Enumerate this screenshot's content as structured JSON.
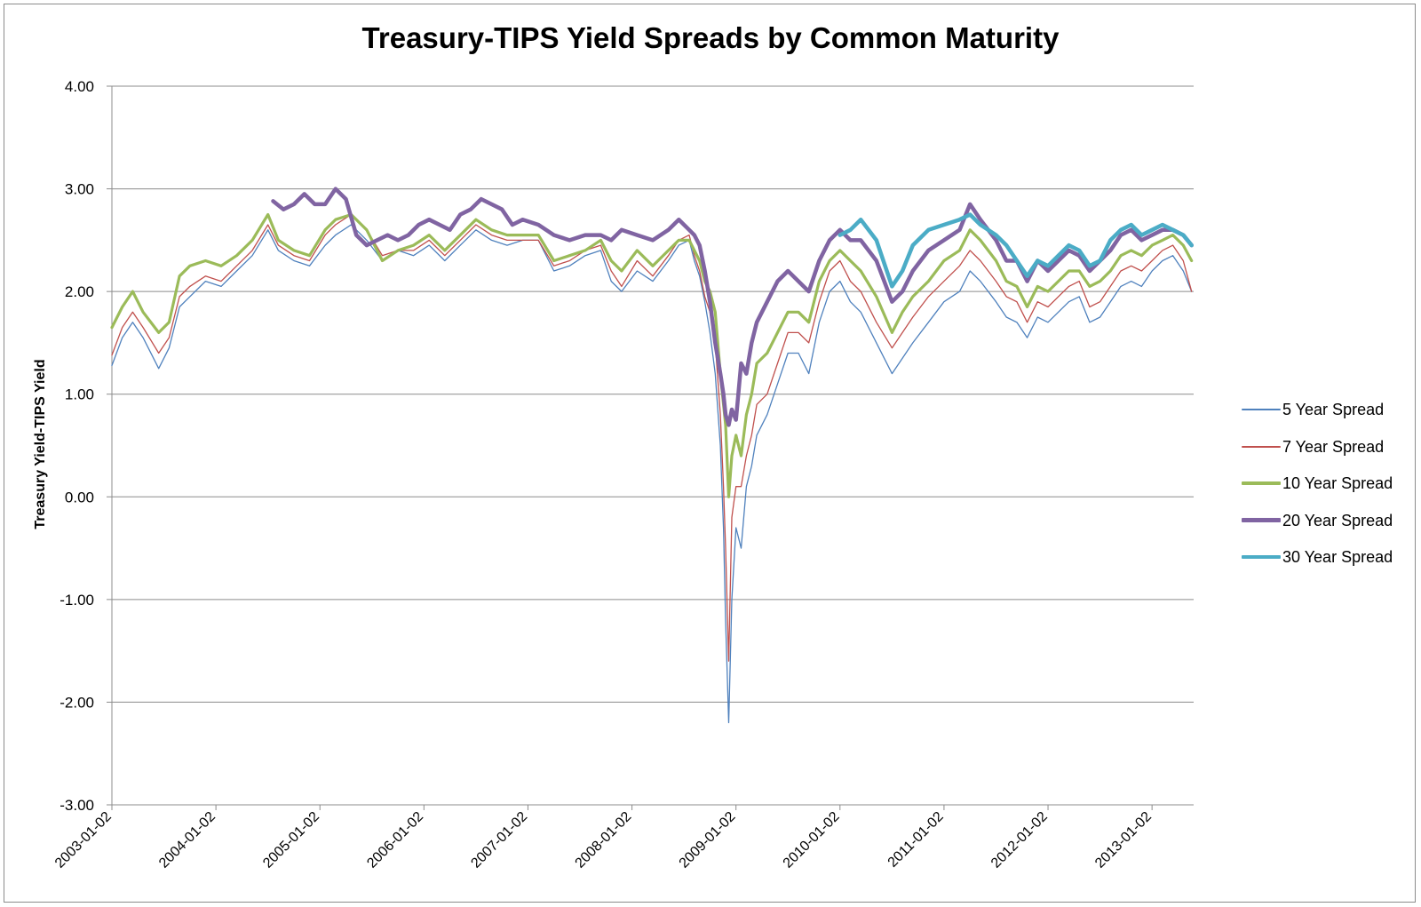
{
  "chart_data": {
    "type": "line",
    "title": "Treasury-TIPS Yield Spreads by Common Maturity",
    "xlabel": "",
    "ylabel": "Treasury Yield-TIPS Yield",
    "ylim": [
      -3.0,
      4.0
    ],
    "yticks": [
      "4.00",
      "3.00",
      "2.00",
      "1.00",
      "0.00",
      "-1.00",
      "-2.00",
      "-3.00"
    ],
    "ytick_values": [
      4,
      3,
      2,
      1,
      0,
      -1,
      -2,
      -3
    ],
    "xlim": [
      2003.0,
      2013.4
    ],
    "xticks": [
      "2003-01-02",
      "2004-01-02",
      "2005-01-02",
      "2006-01-02",
      "2007-01-02",
      "2008-01-02",
      "2009-01-02",
      "2010-01-02",
      "2011-01-02",
      "2012-01-02",
      "2013-01-02"
    ],
    "xtick_values": [
      2003.0,
      2004.0,
      2005.0,
      2006.0,
      2007.0,
      2008.0,
      2009.0,
      2010.0,
      2011.0,
      2012.0,
      2013.0
    ],
    "grid": true,
    "legend_position": "right",
    "series": [
      {
        "name": "5 Year Spread",
        "color": "#4f81bd",
        "width": 1.3,
        "x": [
          2003.0,
          2003.1,
          2003.2,
          2003.3,
          2003.45,
          2003.55,
          2003.65,
          2003.75,
          2003.9,
          2004.05,
          2004.2,
          2004.35,
          2004.5,
          2004.6,
          2004.75,
          2004.9,
          2005.05,
          2005.15,
          2005.3,
          2005.45,
          2005.6,
          2005.75,
          2005.9,
          2006.05,
          2006.2,
          2006.35,
          2006.5,
          2006.65,
          2006.8,
          2006.95,
          2007.1,
          2007.25,
          2007.4,
          2007.55,
          2007.7,
          2007.8,
          2007.9,
          2008.05,
          2008.2,
          2008.35,
          2008.45,
          2008.55,
          2008.6,
          2008.65,
          2008.7,
          2008.75,
          2008.8,
          2008.85,
          2008.88,
          2008.9,
          2008.93,
          2008.96,
          2009.0,
          2009.05,
          2009.1,
          2009.15,
          2009.2,
          2009.3,
          2009.4,
          2009.5,
          2009.6,
          2009.7,
          2009.8,
          2009.9,
          2010.0,
          2010.1,
          2010.2,
          2010.35,
          2010.5,
          2010.6,
          2010.7,
          2010.85,
          2011.0,
          2011.15,
          2011.25,
          2011.35,
          2011.5,
          2011.6,
          2011.7,
          2011.8,
          2011.9,
          2012.0,
          2012.1,
          2012.2,
          2012.3,
          2012.4,
          2012.5,
          2012.6,
          2012.7,
          2012.8,
          2012.9,
          2013.0,
          2013.1,
          2013.2,
          2013.3,
          2013.38
        ],
        "y": [
          1.28,
          1.55,
          1.7,
          1.55,
          1.25,
          1.45,
          1.85,
          1.95,
          2.1,
          2.05,
          2.2,
          2.35,
          2.6,
          2.4,
          2.3,
          2.25,
          2.45,
          2.55,
          2.65,
          2.5,
          2.3,
          2.4,
          2.35,
          2.45,
          2.3,
          2.45,
          2.6,
          2.5,
          2.45,
          2.5,
          2.5,
          2.2,
          2.25,
          2.35,
          2.4,
          2.1,
          2.0,
          2.2,
          2.1,
          2.3,
          2.45,
          2.5,
          2.3,
          2.15,
          1.9,
          1.6,
          1.2,
          0.5,
          -0.3,
          -1.2,
          -2.2,
          -1.0,
          -0.3,
          -0.5,
          0.1,
          0.3,
          0.6,
          0.8,
          1.1,
          1.4,
          1.4,
          1.2,
          1.7,
          2.0,
          2.1,
          1.9,
          1.8,
          1.5,
          1.2,
          1.35,
          1.5,
          1.7,
          1.9,
          2.0,
          2.2,
          2.1,
          1.9,
          1.75,
          1.7,
          1.55,
          1.75,
          1.7,
          1.8,
          1.9,
          1.95,
          1.7,
          1.75,
          1.9,
          2.05,
          2.1,
          2.05,
          2.2,
          2.3,
          2.35,
          2.2,
          2.0
        ]
      },
      {
        "name": "7 Year Spread",
        "color": "#c0504d",
        "width": 1.3,
        "x": [
          2003.0,
          2003.1,
          2003.2,
          2003.3,
          2003.45,
          2003.55,
          2003.65,
          2003.75,
          2003.9,
          2004.05,
          2004.2,
          2004.35,
          2004.5,
          2004.6,
          2004.75,
          2004.9,
          2005.05,
          2005.15,
          2005.3,
          2005.45,
          2005.6,
          2005.75,
          2005.9,
          2006.05,
          2006.2,
          2006.35,
          2006.5,
          2006.65,
          2006.8,
          2006.95,
          2007.1,
          2007.25,
          2007.4,
          2007.55,
          2007.7,
          2007.8,
          2007.9,
          2008.05,
          2008.2,
          2008.35,
          2008.45,
          2008.55,
          2008.6,
          2008.65,
          2008.7,
          2008.75,
          2008.8,
          2008.85,
          2008.88,
          2008.9,
          2008.93,
          2008.96,
          2009.0,
          2009.05,
          2009.1,
          2009.15,
          2009.2,
          2009.3,
          2009.4,
          2009.5,
          2009.6,
          2009.7,
          2009.8,
          2009.9,
          2010.0,
          2010.1,
          2010.2,
          2010.35,
          2010.5,
          2010.6,
          2010.7,
          2010.85,
          2011.0,
          2011.15,
          2011.25,
          2011.35,
          2011.5,
          2011.6,
          2011.7,
          2011.8,
          2011.9,
          2012.0,
          2012.1,
          2012.2,
          2012.3,
          2012.4,
          2012.5,
          2012.6,
          2012.7,
          2012.8,
          2012.9,
          2013.0,
          2013.1,
          2013.2,
          2013.3,
          2013.38
        ],
        "y": [
          1.38,
          1.65,
          1.8,
          1.65,
          1.4,
          1.55,
          1.95,
          2.05,
          2.15,
          2.1,
          2.25,
          2.4,
          2.65,
          2.45,
          2.35,
          2.3,
          2.55,
          2.65,
          2.75,
          2.6,
          2.35,
          2.4,
          2.4,
          2.5,
          2.35,
          2.5,
          2.65,
          2.55,
          2.5,
          2.5,
          2.5,
          2.25,
          2.3,
          2.4,
          2.45,
          2.2,
          2.05,
          2.3,
          2.15,
          2.35,
          2.5,
          2.55,
          2.35,
          2.2,
          1.95,
          1.8,
          1.5,
          0.8,
          0.1,
          -0.5,
          -1.6,
          -0.2,
          0.1,
          0.1,
          0.4,
          0.6,
          0.9,
          1.0,
          1.3,
          1.6,
          1.6,
          1.5,
          1.9,
          2.2,
          2.3,
          2.1,
          2.0,
          1.7,
          1.45,
          1.6,
          1.75,
          1.95,
          2.1,
          2.25,
          2.4,
          2.3,
          2.1,
          1.95,
          1.9,
          1.7,
          1.9,
          1.85,
          1.95,
          2.05,
          2.1,
          1.85,
          1.9,
          2.05,
          2.2,
          2.25,
          2.2,
          2.3,
          2.4,
          2.45,
          2.3,
          2.0
        ]
      },
      {
        "name": "10 Year Spread",
        "color": "#9bbb59",
        "width": 3.2,
        "x": [
          2003.0,
          2003.1,
          2003.2,
          2003.3,
          2003.45,
          2003.55,
          2003.65,
          2003.75,
          2003.9,
          2004.05,
          2004.2,
          2004.35,
          2004.5,
          2004.6,
          2004.75,
          2004.9,
          2005.05,
          2005.15,
          2005.3,
          2005.45,
          2005.6,
          2005.75,
          2005.9,
          2006.05,
          2006.2,
          2006.35,
          2006.5,
          2006.65,
          2006.8,
          2006.95,
          2007.1,
          2007.25,
          2007.4,
          2007.55,
          2007.7,
          2007.8,
          2007.9,
          2008.05,
          2008.2,
          2008.35,
          2008.45,
          2008.55,
          2008.6,
          2008.65,
          2008.7,
          2008.75,
          2008.8,
          2008.85,
          2008.88,
          2008.9,
          2008.93,
          2008.96,
          2009.0,
          2009.05,
          2009.1,
          2009.15,
          2009.2,
          2009.3,
          2009.4,
          2009.5,
          2009.6,
          2009.7,
          2009.8,
          2009.9,
          2010.0,
          2010.1,
          2010.2,
          2010.35,
          2010.5,
          2010.6,
          2010.7,
          2010.85,
          2011.0,
          2011.15,
          2011.25,
          2011.35,
          2011.5,
          2011.6,
          2011.7,
          2011.8,
          2011.9,
          2012.0,
          2012.1,
          2012.2,
          2012.3,
          2012.4,
          2012.5,
          2012.6,
          2012.7,
          2012.8,
          2012.9,
          2013.0,
          2013.1,
          2013.2,
          2013.3,
          2013.38
        ],
        "y": [
          1.65,
          1.85,
          2.0,
          1.8,
          1.6,
          1.7,
          2.15,
          2.25,
          2.3,
          2.25,
          2.35,
          2.5,
          2.75,
          2.5,
          2.4,
          2.35,
          2.6,
          2.7,
          2.75,
          2.6,
          2.3,
          2.4,
          2.45,
          2.55,
          2.4,
          2.55,
          2.7,
          2.6,
          2.55,
          2.55,
          2.55,
          2.3,
          2.35,
          2.4,
          2.5,
          2.3,
          2.2,
          2.4,
          2.25,
          2.4,
          2.5,
          2.5,
          2.4,
          2.3,
          2.1,
          2.0,
          1.8,
          1.2,
          0.9,
          0.7,
          0.0,
          0.4,
          0.6,
          0.4,
          0.8,
          1.0,
          1.3,
          1.4,
          1.6,
          1.8,
          1.8,
          1.7,
          2.1,
          2.3,
          2.4,
          2.3,
          2.2,
          1.95,
          1.6,
          1.8,
          1.95,
          2.1,
          2.3,
          2.4,
          2.6,
          2.5,
          2.3,
          2.1,
          2.05,
          1.85,
          2.05,
          2.0,
          2.1,
          2.2,
          2.2,
          2.05,
          2.1,
          2.2,
          2.35,
          2.4,
          2.35,
          2.45,
          2.5,
          2.55,
          2.45,
          2.3
        ]
      },
      {
        "name": "20 Year Spread",
        "color": "#8064a2",
        "width": 4.5,
        "x": [
          2004.55,
          2004.65,
          2004.75,
          2004.85,
          2004.95,
          2005.05,
          2005.15,
          2005.25,
          2005.35,
          2005.45,
          2005.55,
          2005.65,
          2005.75,
          2005.85,
          2005.95,
          2006.05,
          2006.15,
          2006.25,
          2006.35,
          2006.45,
          2006.55,
          2006.65,
          2006.75,
          2006.85,
          2006.95,
          2007.1,
          2007.25,
          2007.4,
          2007.55,
          2007.7,
          2007.8,
          2007.9,
          2008.05,
          2008.2,
          2008.35,
          2008.45,
          2008.55,
          2008.6,
          2008.65,
          2008.7,
          2008.75,
          2008.8,
          2008.85,
          2008.88,
          2008.9,
          2008.93,
          2008.96,
          2009.0,
          2009.05,
          2009.1,
          2009.15,
          2009.2,
          2009.3,
          2009.4,
          2009.5,
          2009.6,
          2009.7,
          2009.8,
          2009.9,
          2010.0,
          2010.1,
          2010.2,
          2010.35,
          2010.5,
          2010.6,
          2010.7,
          2010.85,
          2011.0,
          2011.15,
          2011.25,
          2011.35,
          2011.5,
          2011.6,
          2011.7,
          2011.8,
          2011.9,
          2012.0,
          2012.1,
          2012.2,
          2012.3,
          2012.4,
          2012.5,
          2012.6,
          2012.7,
          2012.8,
          2012.9,
          2013.0,
          2013.1,
          2013.2,
          2013.3,
          2013.38
        ],
        "y": [
          2.88,
          2.8,
          2.85,
          2.95,
          2.85,
          2.85,
          3.0,
          2.9,
          2.55,
          2.45,
          2.5,
          2.55,
          2.5,
          2.55,
          2.65,
          2.7,
          2.65,
          2.6,
          2.75,
          2.8,
          2.9,
          2.85,
          2.8,
          2.65,
          2.7,
          2.65,
          2.55,
          2.5,
          2.55,
          2.55,
          2.5,
          2.6,
          2.55,
          2.5,
          2.6,
          2.7,
          2.6,
          2.55,
          2.45,
          2.2,
          1.9,
          1.5,
          1.2,
          1.0,
          0.8,
          0.7,
          0.85,
          0.75,
          1.3,
          1.2,
          1.5,
          1.7,
          1.9,
          2.1,
          2.2,
          2.1,
          2.0,
          2.3,
          2.5,
          2.6,
          2.5,
          2.5,
          2.3,
          1.9,
          2.0,
          2.2,
          2.4,
          2.5,
          2.6,
          2.85,
          2.7,
          2.5,
          2.3,
          2.3,
          2.1,
          2.3,
          2.2,
          2.3,
          2.4,
          2.35,
          2.2,
          2.3,
          2.4,
          2.55,
          2.6,
          2.5,
          2.55,
          2.6,
          2.6,
          2.55,
          2.45
        ]
      },
      {
        "name": "30 Year Spread",
        "color": "#4bacc6",
        "width": 4.5,
        "x": [
          2010.0,
          2010.1,
          2010.2,
          2010.35,
          2010.5,
          2010.6,
          2010.7,
          2010.85,
          2011.0,
          2011.15,
          2011.25,
          2011.35,
          2011.5,
          2011.6,
          2011.7,
          2011.8,
          2011.9,
          2012.0,
          2012.1,
          2012.2,
          2012.3,
          2012.4,
          2012.5,
          2012.6,
          2012.7,
          2012.8,
          2012.9,
          2013.0,
          2013.1,
          2013.2,
          2013.3,
          2013.38
        ],
        "y": [
          2.55,
          2.6,
          2.7,
          2.5,
          2.05,
          2.2,
          2.45,
          2.6,
          2.65,
          2.7,
          2.75,
          2.65,
          2.55,
          2.45,
          2.3,
          2.15,
          2.3,
          2.25,
          2.35,
          2.45,
          2.4,
          2.25,
          2.3,
          2.5,
          2.6,
          2.65,
          2.55,
          2.6,
          2.65,
          2.6,
          2.55,
          2.45
        ]
      }
    ]
  }
}
